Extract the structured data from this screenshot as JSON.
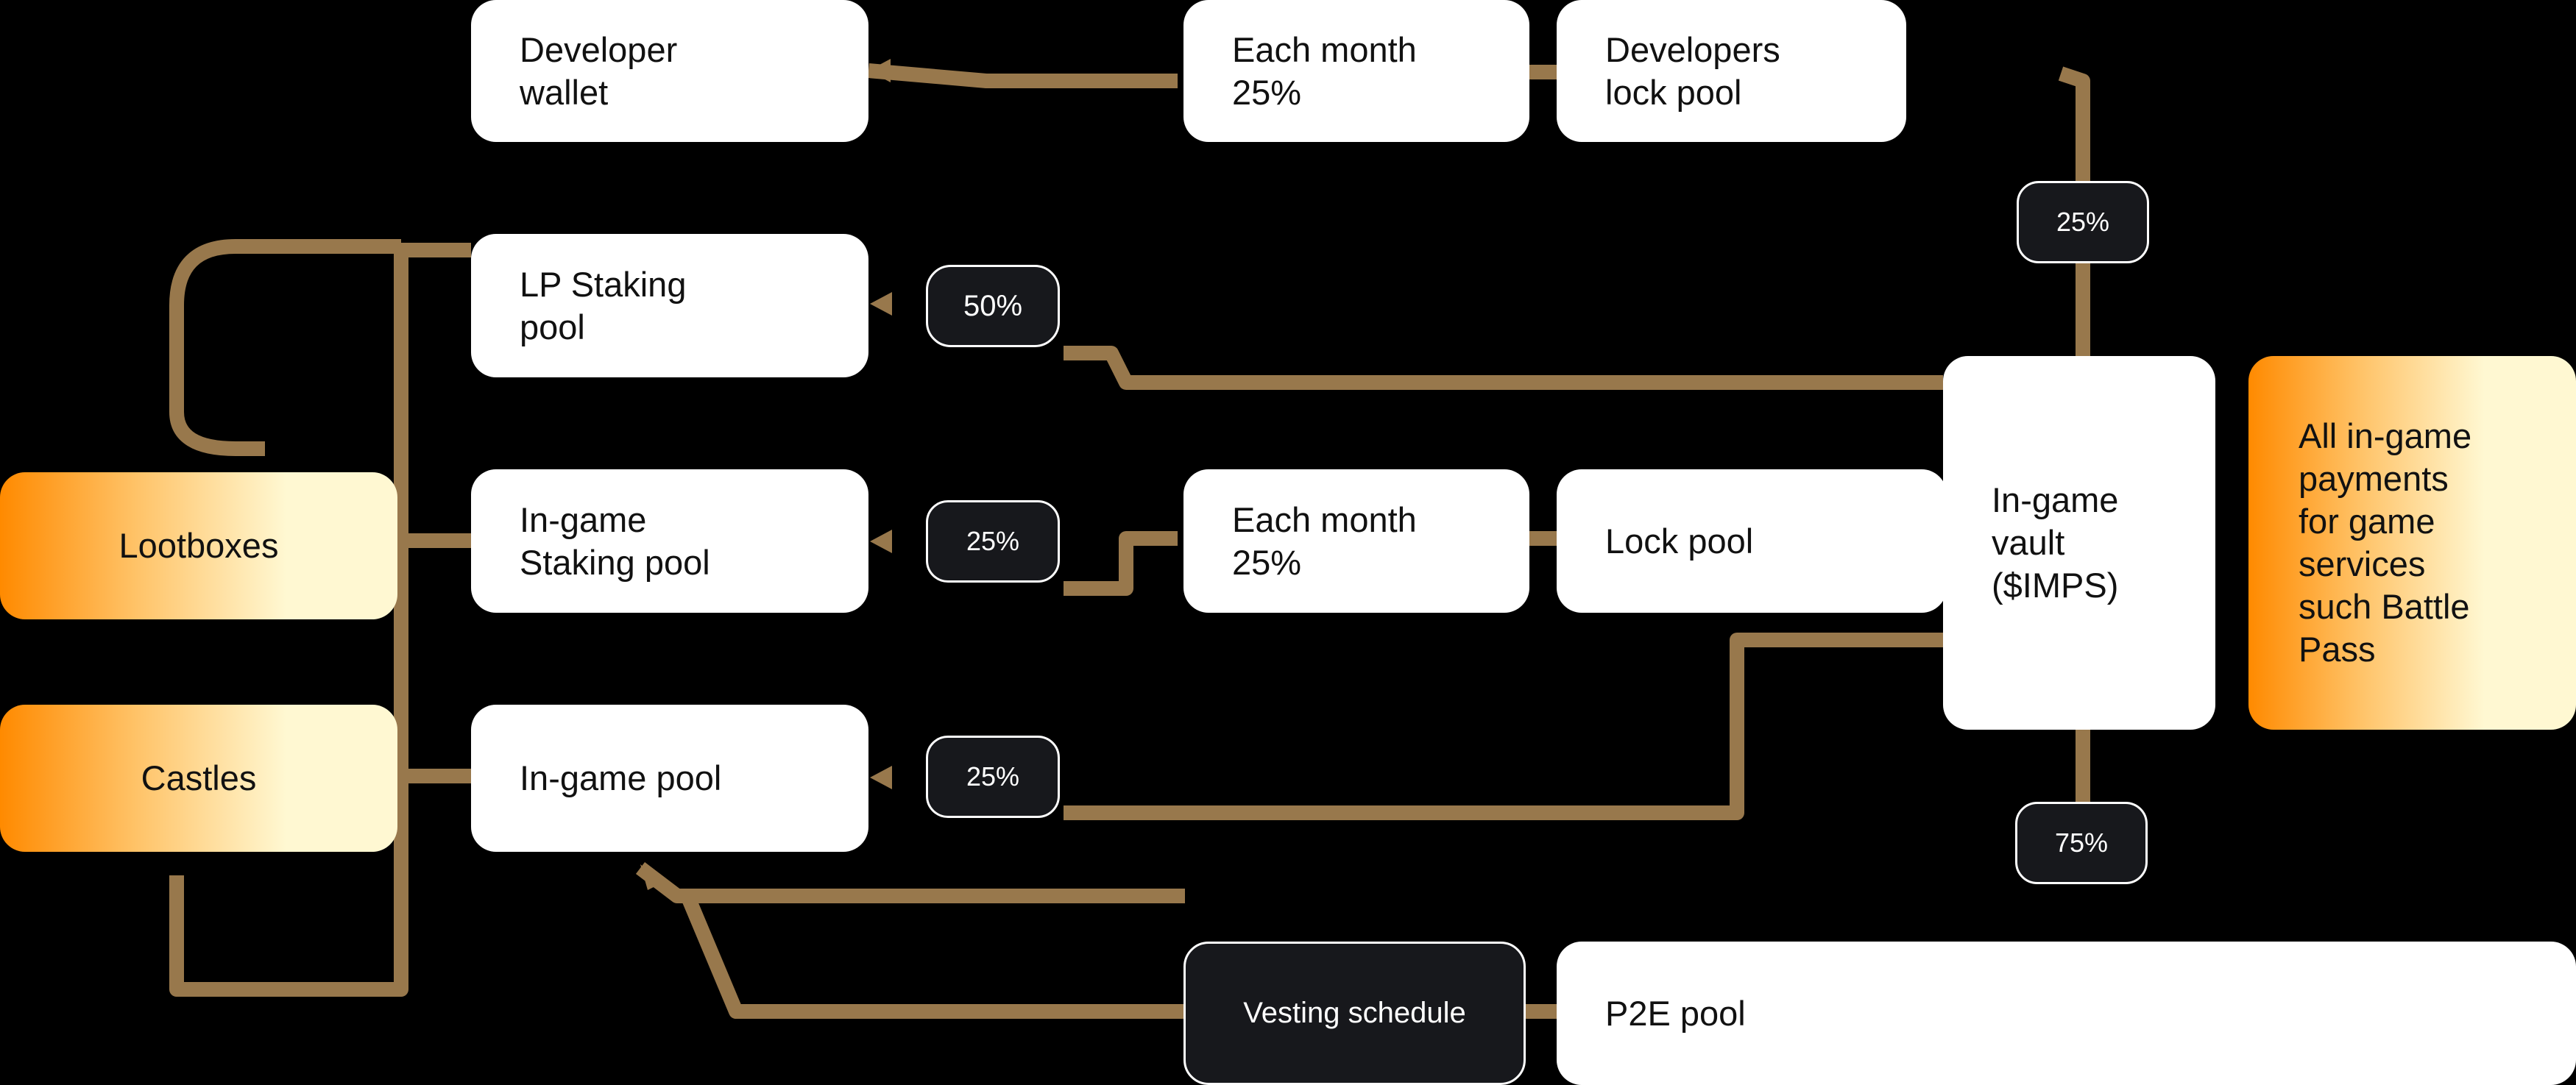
{
  "diagram": {
    "nodes": {
      "developer_wallet": "Developer\nwallet",
      "each_month_top": "Each month\n25%",
      "developers_lock_pool": "Developers\nlock pool",
      "lp_staking_pool": "LP Staking\npool",
      "ingame_staking_pool": "In-game\nStaking pool",
      "each_month_mid": "Each month\n25%",
      "lock_pool": "Lock pool",
      "ingame_vault": "In-game\nvault\n($IMPS)",
      "all_payments": "All in-game\npayments\nfor game\nservices\nsuch Battle\nPass",
      "lootboxes": "Lootboxes",
      "castles": "Castles",
      "ingame_pool": "In-game pool",
      "vesting_schedule": "Vesting schedule",
      "p2e_pool": "P2E pool"
    },
    "badges": {
      "vault_to_devlock": "25%",
      "lp_staking": "50%",
      "ingame_staking": "25%",
      "ingame_pool": "25%",
      "vault_to_pools": "75%"
    }
  },
  "colors": {
    "background": "#000000",
    "connector": "#98784c",
    "node_fill": "#ffffff",
    "badge_fill": "#17181c",
    "source_gradient_start": "#ff8a00",
    "source_gradient_end": "#fff8d2"
  }
}
